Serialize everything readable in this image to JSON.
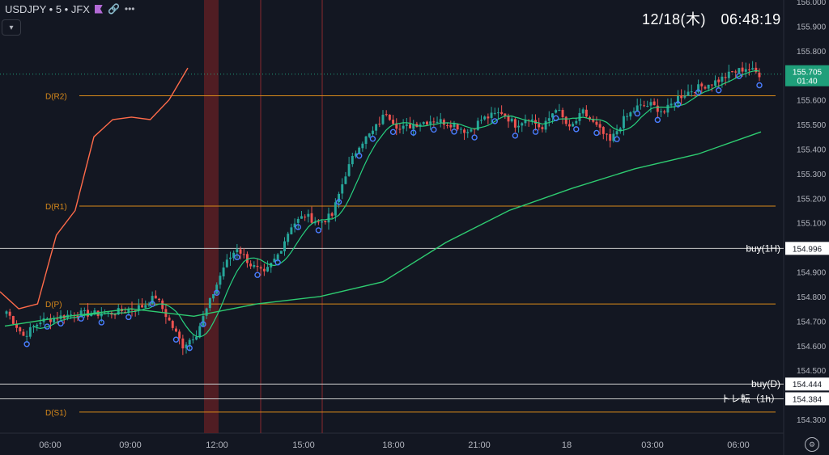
{
  "header": {
    "symbol": "USDJPY",
    "interval": "5",
    "exchange": "JFX",
    "symbol_line": "USDJPY • 5 • JFX",
    "link_icon": "link-icon",
    "more_icon": "more-dots-icon"
  },
  "clock": "12/18(木)　06:48:19",
  "colors": {
    "background": "#131722",
    "up": "#26a69a",
    "down": "#ef5350",
    "ma_fast": "#ff6b4a",
    "ma_slow": "#2ecc71",
    "level_orange": "#d98a1a",
    "level_white": "#c8c8c8",
    "session_band": "#5c1f23",
    "price_tag": "#1f9f7a"
  },
  "chart_data": {
    "type": "candlestick",
    "ylim": [
      154.3,
      156.0
    ],
    "y_ticks": [
      "156.000",
      "155.900",
      "155.800",
      "155.700",
      "155.600",
      "155.500",
      "155.400",
      "155.300",
      "155.200",
      "155.100",
      "155.000",
      "154.900",
      "154.800",
      "154.700",
      "154.600",
      "154.500",
      "154.400",
      "154.300"
    ],
    "x_ticks": [
      "06:00",
      "09:00",
      "12:00",
      "15:00",
      "18:00",
      "21:00",
      "18",
      "03:00",
      "06:00"
    ],
    "price_anchors": [
      [
        0,
        154.74
      ],
      [
        5,
        154.64
      ],
      [
        10,
        154.7
      ],
      [
        20,
        154.73
      ],
      [
        30,
        154.73
      ],
      [
        40,
        154.76
      ],
      [
        44,
        154.8
      ],
      [
        48,
        154.7
      ],
      [
        52,
        154.6
      ],
      [
        56,
        154.65
      ],
      [
        60,
        154.78
      ],
      [
        64,
        154.92
      ],
      [
        68,
        155.0
      ],
      [
        72,
        154.93
      ],
      [
        76,
        154.89
      ],
      [
        80,
        154.97
      ],
      [
        84,
        155.09
      ],
      [
        88,
        155.13
      ],
      [
        92,
        155.1
      ],
      [
        96,
        155.13
      ],
      [
        100,
        155.3
      ],
      [
        104,
        155.42
      ],
      [
        108,
        155.47
      ],
      [
        112,
        155.55
      ],
      [
        116,
        155.48
      ],
      [
        120,
        155.5
      ],
      [
        126,
        155.52
      ],
      [
        132,
        155.5
      ],
      [
        136,
        155.47
      ],
      [
        140,
        155.52
      ],
      [
        146,
        155.55
      ],
      [
        150,
        155.5
      ],
      [
        154,
        155.53
      ],
      [
        158,
        155.48
      ],
      [
        162,
        155.57
      ],
      [
        166,
        155.48
      ],
      [
        170,
        155.55
      ],
      [
        174,
        155.49
      ],
      [
        178,
        155.43
      ],
      [
        182,
        155.52
      ],
      [
        186,
        155.57
      ],
      [
        190,
        155.58
      ],
      [
        194,
        155.55
      ],
      [
        198,
        155.61
      ],
      [
        202,
        155.64
      ],
      [
        206,
        155.66
      ],
      [
        210,
        155.68
      ],
      [
        214,
        155.71
      ],
      [
        218,
        155.73
      ],
      [
        222,
        155.705
      ]
    ],
    "n_candles": 223,
    "series": [
      {
        "type": "sma",
        "values": [
          154.82,
          154.75,
          154.77,
          155.05,
          155.15,
          155.45,
          155.52,
          155.53,
          155.52,
          155.6,
          155.73
        ]
      },
      {
        "type": "sma",
        "values": [
          154.68,
          154.72,
          154.75,
          154.72,
          154.77,
          154.8,
          154.86,
          155.02,
          155.15,
          155.24,
          155.32,
          155.38,
          155.47
        ]
      }
    ],
    "levels": [
      {
        "name": "D(R2)",
        "value": 155.617,
        "style": "orange"
      },
      {
        "name": "D(R1)",
        "value": 155.168,
        "style": "orange"
      },
      {
        "name": "D(P)",
        "value": 154.77,
        "style": "orange"
      },
      {
        "name": "D(S1)",
        "value": 154.33,
        "style": "orange"
      },
      {
        "name": "buy(1H)",
        "value": 154.996,
        "style": "white",
        "tag": "154.996"
      },
      {
        "name": "buy(D)",
        "value": 154.444,
        "style": "white",
        "tag": "154.444"
      },
      {
        "name": "トレ転（1h）",
        "value": 154.384,
        "style": "white",
        "tag": "154.384"
      }
    ],
    "current_price": {
      "value": 155.705,
      "label": "155.705",
      "countdown": "01:40"
    },
    "session_markers": [
      "11:45-12:05",
      "13:10",
      "15:45"
    ],
    "signal_dots": [
      6,
      12,
      16,
      22,
      28,
      36,
      43,
      50,
      54,
      58,
      62,
      68,
      74,
      80,
      86,
      92,
      98,
      104,
      108,
      114,
      120,
      126,
      132,
      138,
      144,
      150,
      156,
      162,
      168,
      174,
      180,
      186,
      192,
      198,
      204,
      210,
      216,
      222
    ]
  }
}
